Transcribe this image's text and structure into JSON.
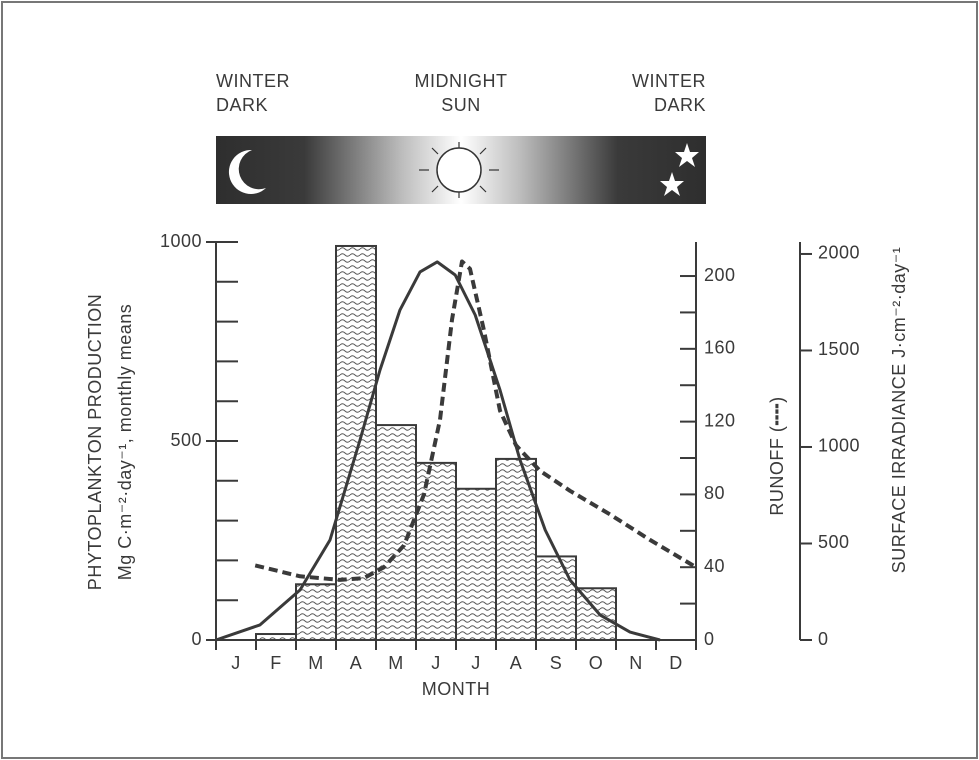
{
  "chart_data": {
    "type": "bar",
    "top_labels": [
      [
        "WINTER",
        "DARK"
      ],
      [
        "MIDNIGHT",
        "SUN"
      ],
      [
        "WINTER",
        "DARK"
      ]
    ],
    "categories": [
      "J",
      "F",
      "M",
      "A",
      "M",
      "J",
      "J",
      "A",
      "S",
      "O",
      "N",
      "D"
    ],
    "values": [
      0,
      15,
      140,
      990,
      540,
      445,
      380,
      455,
      210,
      130,
      0,
      0
    ],
    "x_label": "MONTH",
    "y_label": [
      "PHYTOPLANKTON PRODUCTION",
      "Mg C·m⁻²·day⁻¹, monthly means"
    ],
    "ylim": [
      0,
      1000
    ],
    "yticks": [
      0,
      500,
      1000
    ],
    "yminor_ticks": [
      100,
      200,
      300,
      400,
      600,
      700,
      800,
      900
    ],
    "y2_label": "RUNOFF (╍╍)",
    "y2lim": [
      0,
      218.7
    ],
    "y2ticks": [
      0,
      40,
      80,
      120,
      160,
      200
    ],
    "y2minor_ticks": [
      20,
      60,
      100,
      140,
      180
    ],
    "y3_label": "SURFACE IRRADIANCE J·cm⁻²·day⁻¹",
    "y3lim": [
      0,
      2062
    ],
    "y3ticks": [
      0,
      500,
      1000,
      1500,
      2000
    ],
    "lines": [
      {
        "axis": "y2",
        "style": "dashed",
        "x": [
          0.48,
          1.6,
          2.6,
          3.2,
          3.7,
          4.2,
          4.7,
          5.1,
          5.4,
          5.65,
          5.85,
          6.2,
          6.6,
          7.0,
          7.6,
          8.35,
          9.35,
          10.35,
          11.5
        ],
        "values": [
          41,
          35,
          33,
          34,
          40,
          52,
          80,
          121,
          176,
          208,
          204,
          170,
          126,
          107,
          93,
          82,
          69,
          55,
          40
        ]
      },
      {
        "axis": "y3",
        "style": "solid",
        "x": [
          -0.5,
          0.6,
          1.6,
          2.35,
          3.1,
          3.6,
          4.1,
          4.6,
          5.03,
          5.48,
          5.98,
          6.6,
          7.1,
          7.73,
          8.35,
          9.1,
          9.85,
          10.6
        ],
        "values": [
          0,
          78,
          259,
          518,
          1036,
          1399,
          1710,
          1907,
          1959,
          1891,
          1684,
          1295,
          933,
          570,
          311,
          130,
          41,
          0
        ]
      }
    ],
    "color": "#3a3a3a"
  }
}
